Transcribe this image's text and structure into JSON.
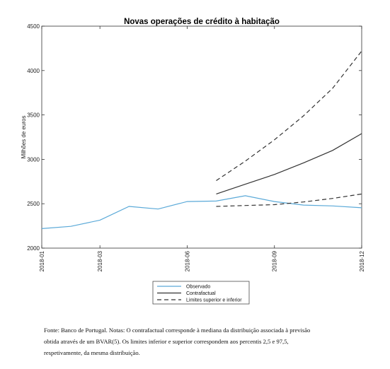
{
  "chart_data": {
    "type": "line",
    "title": "Novas operações de crédito à habitação",
    "xlabel": "",
    "ylabel": "Milhões de euros",
    "ylim": [
      2000,
      4500
    ],
    "yticks": [
      "2000",
      "2500",
      "3000",
      "3500",
      "4000",
      "4500"
    ],
    "xticks": [
      "2018-01",
      "2018-03",
      "2018-06",
      "2018-09",
      "2018-12"
    ],
    "grid": false,
    "legend_position": "bottom",
    "series": [
      {
        "name": "Observado",
        "style": "solid",
        "color": "#5aa9d8",
        "x": [
          "2018-01",
          "2018-02",
          "2018-03",
          "2018-04",
          "2018-05",
          "2018-06",
          "2018-07",
          "2018-08",
          "2018-09",
          "2018-10",
          "2018-11",
          "2018-12"
        ],
        "values": [
          2220,
          2245,
          2315,
          2470,
          2440,
          2525,
          2530,
          2590,
          2525,
          2485,
          2475,
          2455
        ]
      },
      {
        "name": "Contrafactual",
        "style": "solid",
        "color": "#333333",
        "x": [
          "2018-07",
          "2018-08",
          "2018-09",
          "2018-10",
          "2018-11",
          "2018-12"
        ],
        "values": [
          2610,
          2720,
          2830,
          2960,
          3100,
          3290
        ]
      },
      {
        "name": "Limites superior e inferior",
        "style": "dashed",
        "color": "#333333",
        "x": [
          "2018-07",
          "2018-08",
          "2018-09",
          "2018-10",
          "2018-11",
          "2018-12"
        ],
        "values": [
          2760,
          2980,
          3220,
          3490,
          3800,
          4220
        ]
      },
      {
        "name": "",
        "style": "dashed",
        "color": "#333333",
        "x": [
          "2018-07",
          "2018-08",
          "2018-09",
          "2018-10",
          "2018-11",
          "2018-12"
        ],
        "values": [
          2470,
          2480,
          2490,
          2520,
          2560,
          2610
        ]
      }
    ]
  },
  "footnote": {
    "lines": [
      "Fonte: Banco de Portugal. Notas: O contrafactual corresponde à mediana da distribuição associada à previsão",
      "obtida através de um BVAR(5). Os limites inferior e superior correspondem aos percentis 2,5 e 97,5,",
      "respetivamente, da mesma distribuição."
    ]
  }
}
